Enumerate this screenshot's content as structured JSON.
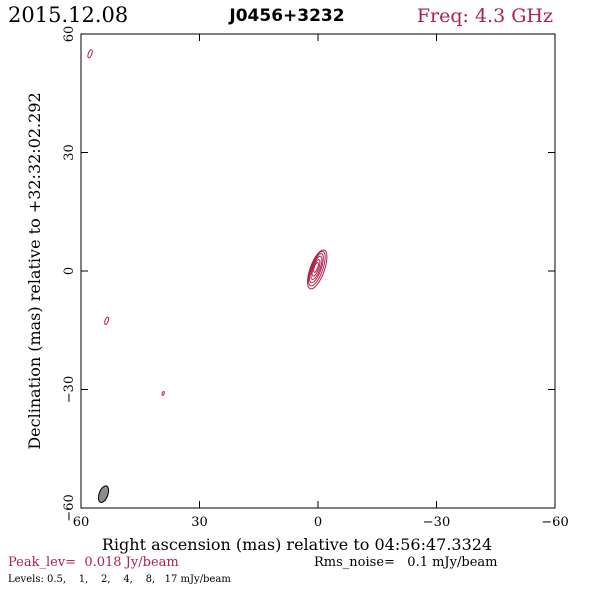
{
  "header": {
    "date": "2015.12.08",
    "source": "J0456+3232",
    "freq": "Freq: 4.3 GHz"
  },
  "footer": {
    "peak": "Peak_lev=  0.018 Jy/beam",
    "rms": "Rms_noise=   0.1 mJy/beam",
    "levels": "Levels: 0.5,    1,    2,    4,    8,   17 mJy/beam"
  },
  "colors": {
    "accent": "#b0204a",
    "axis": "#000000",
    "beam_fill": "#8c8c8c"
  },
  "chart_data": {
    "type": "contour",
    "title": "J0456+3232",
    "xlabel": "Right ascension (mas) relative to 04:56:47.3324",
    "ylabel": "Declination (mas) relative to +32:32:02.292",
    "xlim": [
      60,
      -60
    ],
    "ylim": [
      -60,
      60
    ],
    "xticks": [
      60,
      30,
      0,
      -30,
      -60
    ],
    "yticks": [
      60,
      30,
      0,
      -30,
      -60
    ],
    "xtick_labels": [
      "60",
      "30",
      "0",
      "−30",
      "−60"
    ],
    "ytick_labels": [
      "60",
      "30",
      "0",
      "−30",
      "−60"
    ],
    "levels_mJy": [
      0.5,
      1,
      2,
      4,
      8,
      17
    ],
    "peak_Jy_per_beam": 0.018,
    "rms_mJy_per_beam": 0.1,
    "core_contours": [
      {
        "x": 0.2,
        "y": 0.4,
        "rx": 1.8,
        "ry": 5.2,
        "angle": 20
      },
      {
        "x": 0.3,
        "y": 0.6,
        "rx": 1.5,
        "ry": 4.6,
        "angle": 20
      },
      {
        "x": 0.4,
        "y": 0.7,
        "rx": 1.2,
        "ry": 3.9,
        "angle": 20
      },
      {
        "x": 0.4,
        "y": 0.8,
        "rx": 0.95,
        "ry": 3.1,
        "angle": 20
      },
      {
        "x": 0.5,
        "y": 0.8,
        "rx": 0.7,
        "ry": 2.2,
        "angle": 20
      },
      {
        "x": 0.5,
        "y": 0.9,
        "rx": 0.45,
        "ry": 1.3,
        "angle": 20
      }
    ],
    "noise_contours": [
      {
        "x": 57.7,
        "y": 55.0,
        "rx": 0.45,
        "ry": 1.1,
        "angle": 20
      },
      {
        "x": 53.5,
        "y": -12.6,
        "rx": 0.4,
        "ry": 1.0,
        "angle": 20
      },
      {
        "x": 39.2,
        "y": -31.0,
        "rx": 0.25,
        "ry": 0.5,
        "angle": 20
      }
    ],
    "beam": {
      "x": 54.3,
      "y": -56.5,
      "major_mas": 4.4,
      "minor_mas": 2.2,
      "pa_deg": 20
    }
  }
}
